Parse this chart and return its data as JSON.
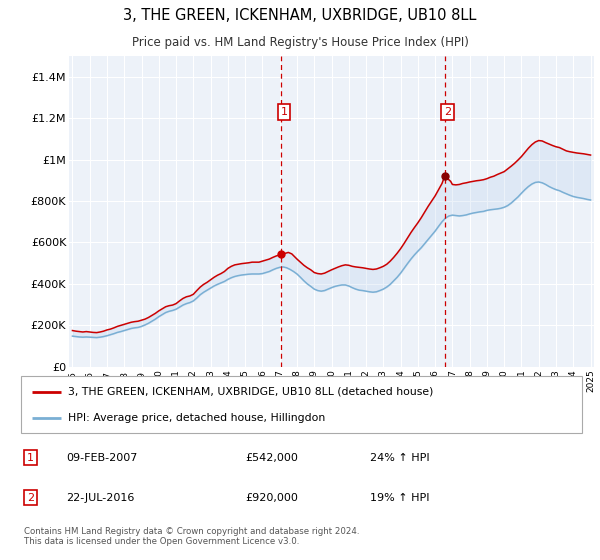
{
  "title": "3, THE GREEN, ICKENHAM, UXBRIDGE, UB10 8LL",
  "subtitle": "Price paid vs. HM Land Registry's House Price Index (HPI)",
  "background_color": "#ffffff",
  "plot_bg_color": "#edf2f9",
  "grid_color": "#ffffff",
  "ylim": [
    0,
    1500000
  ],
  "yticks": [
    0,
    200000,
    400000,
    600000,
    800000,
    1000000,
    1200000,
    1400000
  ],
  "ytick_labels": [
    "£0",
    "£200K",
    "£400K",
    "£600K",
    "£800K",
    "£1M",
    "£1.2M",
    "£1.4M"
  ],
  "xmin_year": 1995,
  "xmax_year": 2025,
  "xticks": [
    1995,
    1996,
    1997,
    1998,
    1999,
    2000,
    2001,
    2002,
    2003,
    2004,
    2005,
    2006,
    2007,
    2008,
    2009,
    2010,
    2011,
    2012,
    2013,
    2014,
    2015,
    2016,
    2017,
    2018,
    2019,
    2020,
    2021,
    2022,
    2023,
    2024,
    2025
  ],
  "marker1_x": 2007.1,
  "marker1_y": 542000,
  "marker1_label": "1",
  "marker1_date": "09-FEB-2007",
  "marker1_price": "£542,000",
  "marker1_hpi": "24% ↑ HPI",
  "marker2_x": 2016.55,
  "marker2_y": 920000,
  "marker2_label": "2",
  "marker2_date": "22-JUL-2016",
  "marker2_price": "£920,000",
  "marker2_hpi": "19% ↑ HPI",
  "red_line_color": "#cc0000",
  "blue_line_color": "#7aafd4",
  "legend_label_red": "3, THE GREEN, ICKENHAM, UXBRIDGE, UB10 8LL (detached house)",
  "legend_label_blue": "HPI: Average price, detached house, Hillingdon",
  "footer": "Contains HM Land Registry data © Crown copyright and database right 2024.\nThis data is licensed under the Open Government Licence v3.0.",
  "red_data": [
    [
      1995.0,
      175000
    ],
    [
      1995.2,
      172000
    ],
    [
      1995.4,
      170000
    ],
    [
      1995.6,
      168000
    ],
    [
      1995.8,
      170000
    ],
    [
      1996.0,
      168000
    ],
    [
      1996.2,
      166000
    ],
    [
      1996.4,
      165000
    ],
    [
      1996.6,
      168000
    ],
    [
      1996.8,
      172000
    ],
    [
      1997.0,
      178000
    ],
    [
      1997.2,
      182000
    ],
    [
      1997.4,
      188000
    ],
    [
      1997.6,
      195000
    ],
    [
      1997.8,
      200000
    ],
    [
      1998.0,
      205000
    ],
    [
      1998.2,
      210000
    ],
    [
      1998.4,
      215000
    ],
    [
      1998.6,
      218000
    ],
    [
      1998.8,
      220000
    ],
    [
      1999.0,
      225000
    ],
    [
      1999.2,
      230000
    ],
    [
      1999.4,
      238000
    ],
    [
      1999.6,
      248000
    ],
    [
      1999.8,
      258000
    ],
    [
      2000.0,
      270000
    ],
    [
      2000.2,
      280000
    ],
    [
      2000.4,
      290000
    ],
    [
      2000.6,
      295000
    ],
    [
      2000.8,
      298000
    ],
    [
      2001.0,
      305000
    ],
    [
      2001.2,
      318000
    ],
    [
      2001.4,
      330000
    ],
    [
      2001.6,
      338000
    ],
    [
      2001.8,
      342000
    ],
    [
      2002.0,
      350000
    ],
    [
      2002.2,
      368000
    ],
    [
      2002.4,
      385000
    ],
    [
      2002.6,
      398000
    ],
    [
      2002.8,
      408000
    ],
    [
      2003.0,
      420000
    ],
    [
      2003.2,
      432000
    ],
    [
      2003.4,
      442000
    ],
    [
      2003.6,
      450000
    ],
    [
      2003.8,
      460000
    ],
    [
      2004.0,
      475000
    ],
    [
      2004.2,
      485000
    ],
    [
      2004.4,
      492000
    ],
    [
      2004.6,
      495000
    ],
    [
      2004.8,
      498000
    ],
    [
      2005.0,
      500000
    ],
    [
      2005.2,
      502000
    ],
    [
      2005.4,
      505000
    ],
    [
      2005.6,
      505000
    ],
    [
      2005.8,
      505000
    ],
    [
      2006.0,
      510000
    ],
    [
      2006.2,
      515000
    ],
    [
      2006.4,
      520000
    ],
    [
      2006.6,
      528000
    ],
    [
      2006.8,
      535000
    ],
    [
      2007.0,
      540000
    ],
    [
      2007.1,
      542000
    ],
    [
      2007.3,
      548000
    ],
    [
      2007.5,
      552000
    ],
    [
      2007.7,
      545000
    ],
    [
      2008.0,
      520000
    ],
    [
      2008.2,
      505000
    ],
    [
      2008.4,
      490000
    ],
    [
      2008.6,
      478000
    ],
    [
      2008.8,
      468000
    ],
    [
      2009.0,
      455000
    ],
    [
      2009.2,
      450000
    ],
    [
      2009.4,
      448000
    ],
    [
      2009.6,
      452000
    ],
    [
      2009.8,
      460000
    ],
    [
      2010.0,
      468000
    ],
    [
      2010.2,
      475000
    ],
    [
      2010.4,
      482000
    ],
    [
      2010.6,
      488000
    ],
    [
      2010.8,
      492000
    ],
    [
      2011.0,
      490000
    ],
    [
      2011.2,
      485000
    ],
    [
      2011.4,
      482000
    ],
    [
      2011.6,
      480000
    ],
    [
      2011.8,
      478000
    ],
    [
      2012.0,
      475000
    ],
    [
      2012.2,
      472000
    ],
    [
      2012.4,
      470000
    ],
    [
      2012.6,
      472000
    ],
    [
      2012.8,
      478000
    ],
    [
      2013.0,
      485000
    ],
    [
      2013.2,
      495000
    ],
    [
      2013.4,
      510000
    ],
    [
      2013.6,
      528000
    ],
    [
      2013.8,
      548000
    ],
    [
      2014.0,
      570000
    ],
    [
      2014.2,
      595000
    ],
    [
      2014.4,
      622000
    ],
    [
      2014.6,
      648000
    ],
    [
      2014.8,
      672000
    ],
    [
      2015.0,
      695000
    ],
    [
      2015.2,
      720000
    ],
    [
      2015.4,
      748000
    ],
    [
      2015.6,
      775000
    ],
    [
      2015.8,
      800000
    ],
    [
      2016.0,
      825000
    ],
    [
      2016.2,
      855000
    ],
    [
      2016.4,
      885000
    ],
    [
      2016.55,
      920000
    ],
    [
      2016.7,
      910000
    ],
    [
      2016.9,
      895000
    ],
    [
      2017.0,
      880000
    ],
    [
      2017.2,
      878000
    ],
    [
      2017.4,
      880000
    ],
    [
      2017.6,
      885000
    ],
    [
      2017.8,
      888000
    ],
    [
      2018.0,
      892000
    ],
    [
      2018.2,
      895000
    ],
    [
      2018.4,
      898000
    ],
    [
      2018.6,
      900000
    ],
    [
      2018.8,
      903000
    ],
    [
      2019.0,
      908000
    ],
    [
      2019.2,
      915000
    ],
    [
      2019.4,
      920000
    ],
    [
      2019.6,
      928000
    ],
    [
      2019.8,
      935000
    ],
    [
      2020.0,
      942000
    ],
    [
      2020.2,
      955000
    ],
    [
      2020.4,
      968000
    ],
    [
      2020.6,
      982000
    ],
    [
      2020.8,
      998000
    ],
    [
      2021.0,
      1015000
    ],
    [
      2021.2,
      1035000
    ],
    [
      2021.4,
      1055000
    ],
    [
      2021.6,
      1072000
    ],
    [
      2021.8,
      1085000
    ],
    [
      2022.0,
      1092000
    ],
    [
      2022.2,
      1090000
    ],
    [
      2022.4,
      1082000
    ],
    [
      2022.6,
      1075000
    ],
    [
      2022.8,
      1068000
    ],
    [
      2023.0,
      1062000
    ],
    [
      2023.2,
      1058000
    ],
    [
      2023.4,
      1050000
    ],
    [
      2023.6,
      1042000
    ],
    [
      2023.8,
      1038000
    ],
    [
      2024.0,
      1035000
    ],
    [
      2024.2,
      1032000
    ],
    [
      2024.4,
      1030000
    ],
    [
      2024.6,
      1028000
    ],
    [
      2024.8,
      1025000
    ],
    [
      2025.0,
      1022000
    ]
  ],
  "blue_data": [
    [
      1995.0,
      148000
    ],
    [
      1995.2,
      146000
    ],
    [
      1995.4,
      144000
    ],
    [
      1995.6,
      143000
    ],
    [
      1995.8,
      144000
    ],
    [
      1996.0,
      143000
    ],
    [
      1996.2,
      142000
    ],
    [
      1996.4,
      141000
    ],
    [
      1996.6,
      143000
    ],
    [
      1996.8,
      146000
    ],
    [
      1997.0,
      150000
    ],
    [
      1997.2,
      155000
    ],
    [
      1997.4,
      160000
    ],
    [
      1997.6,
      166000
    ],
    [
      1997.8,
      170000
    ],
    [
      1998.0,
      175000
    ],
    [
      1998.2,
      180000
    ],
    [
      1998.4,
      185000
    ],
    [
      1998.6,
      188000
    ],
    [
      1998.8,
      190000
    ],
    [
      1999.0,
      195000
    ],
    [
      1999.2,
      202000
    ],
    [
      1999.4,
      210000
    ],
    [
      1999.6,
      220000
    ],
    [
      1999.8,
      230000
    ],
    [
      2000.0,
      242000
    ],
    [
      2000.2,
      252000
    ],
    [
      2000.4,
      262000
    ],
    [
      2000.6,
      268000
    ],
    [
      2000.8,
      272000
    ],
    [
      2001.0,
      278000
    ],
    [
      2001.2,
      288000
    ],
    [
      2001.4,
      298000
    ],
    [
      2001.6,
      305000
    ],
    [
      2001.8,
      310000
    ],
    [
      2002.0,
      318000
    ],
    [
      2002.2,
      332000
    ],
    [
      2002.4,
      348000
    ],
    [
      2002.6,
      360000
    ],
    [
      2002.8,
      370000
    ],
    [
      2003.0,
      380000
    ],
    [
      2003.2,
      390000
    ],
    [
      2003.4,
      398000
    ],
    [
      2003.6,
      405000
    ],
    [
      2003.8,
      412000
    ],
    [
      2004.0,
      422000
    ],
    [
      2004.2,
      430000
    ],
    [
      2004.4,
      436000
    ],
    [
      2004.6,
      440000
    ],
    [
      2004.8,
      443000
    ],
    [
      2005.0,
      445000
    ],
    [
      2005.2,
      447000
    ],
    [
      2005.4,
      448000
    ],
    [
      2005.6,
      448000
    ],
    [
      2005.8,
      448000
    ],
    [
      2006.0,
      450000
    ],
    [
      2006.2,
      455000
    ],
    [
      2006.4,
      460000
    ],
    [
      2006.6,
      468000
    ],
    [
      2006.8,
      475000
    ],
    [
      2007.0,
      480000
    ],
    [
      2007.2,
      482000
    ],
    [
      2007.4,
      478000
    ],
    [
      2007.6,
      470000
    ],
    [
      2007.8,
      460000
    ],
    [
      2008.0,
      448000
    ],
    [
      2008.2,
      432000
    ],
    [
      2008.4,
      415000
    ],
    [
      2008.6,
      400000
    ],
    [
      2008.8,
      388000
    ],
    [
      2009.0,
      375000
    ],
    [
      2009.2,
      368000
    ],
    [
      2009.4,
      365000
    ],
    [
      2009.6,
      368000
    ],
    [
      2009.8,
      375000
    ],
    [
      2010.0,
      382000
    ],
    [
      2010.2,
      388000
    ],
    [
      2010.4,
      392000
    ],
    [
      2010.6,
      395000
    ],
    [
      2010.8,
      395000
    ],
    [
      2011.0,
      390000
    ],
    [
      2011.2,
      382000
    ],
    [
      2011.4,
      375000
    ],
    [
      2011.6,
      370000
    ],
    [
      2011.8,
      368000
    ],
    [
      2012.0,
      365000
    ],
    [
      2012.2,
      362000
    ],
    [
      2012.4,
      360000
    ],
    [
      2012.6,
      362000
    ],
    [
      2012.8,
      368000
    ],
    [
      2013.0,
      375000
    ],
    [
      2013.2,
      385000
    ],
    [
      2013.4,
      398000
    ],
    [
      2013.6,
      415000
    ],
    [
      2013.8,
      432000
    ],
    [
      2014.0,
      452000
    ],
    [
      2014.2,
      475000
    ],
    [
      2014.4,
      498000
    ],
    [
      2014.6,
      520000
    ],
    [
      2014.8,
      540000
    ],
    [
      2015.0,
      558000
    ],
    [
      2015.2,
      575000
    ],
    [
      2015.4,
      595000
    ],
    [
      2015.6,
      615000
    ],
    [
      2015.8,
      635000
    ],
    [
      2016.0,
      655000
    ],
    [
      2016.2,
      678000
    ],
    [
      2016.4,
      700000
    ],
    [
      2016.6,
      718000
    ],
    [
      2016.8,
      728000
    ],
    [
      2017.0,
      732000
    ],
    [
      2017.2,
      730000
    ],
    [
      2017.4,
      728000
    ],
    [
      2017.6,
      730000
    ],
    [
      2017.8,
      733000
    ],
    [
      2018.0,
      738000
    ],
    [
      2018.2,
      742000
    ],
    [
      2018.4,
      745000
    ],
    [
      2018.6,
      748000
    ],
    [
      2018.8,
      750000
    ],
    [
      2019.0,
      755000
    ],
    [
      2019.2,
      758000
    ],
    [
      2019.4,
      760000
    ],
    [
      2019.6,
      762000
    ],
    [
      2019.8,
      765000
    ],
    [
      2020.0,
      770000
    ],
    [
      2020.2,
      778000
    ],
    [
      2020.4,
      790000
    ],
    [
      2020.6,
      805000
    ],
    [
      2020.8,
      820000
    ],
    [
      2021.0,
      838000
    ],
    [
      2021.2,
      855000
    ],
    [
      2021.4,
      870000
    ],
    [
      2021.6,
      882000
    ],
    [
      2021.8,
      890000
    ],
    [
      2022.0,
      892000
    ],
    [
      2022.2,
      888000
    ],
    [
      2022.4,
      880000
    ],
    [
      2022.6,
      870000
    ],
    [
      2022.8,
      862000
    ],
    [
      2023.0,
      855000
    ],
    [
      2023.2,
      850000
    ],
    [
      2023.4,
      842000
    ],
    [
      2023.6,
      835000
    ],
    [
      2023.8,
      828000
    ],
    [
      2024.0,
      822000
    ],
    [
      2024.2,
      818000
    ],
    [
      2024.4,
      815000
    ],
    [
      2024.6,
      812000
    ],
    [
      2024.8,
      808000
    ],
    [
      2025.0,
      805000
    ]
  ]
}
